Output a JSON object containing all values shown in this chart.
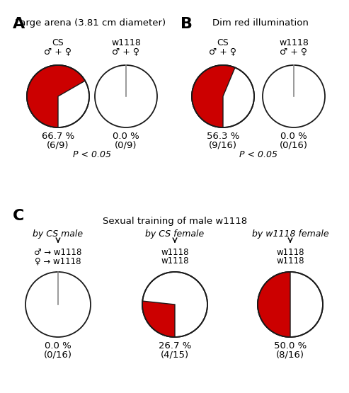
{
  "panel_A_title": "Large arena (3.81 cm diameter)",
  "panel_B_title": "Dim red illumination",
  "panel_C_title": "Sexual training of male w1118",
  "section_A_label": "A",
  "section_B_label": "B",
  "section_C_label": "C",
  "pies": {
    "A_CS": {
      "percent": 66.7,
      "label": "66.7 %",
      "sublabel": "(6/9)",
      "title": "CS",
      "subtitle": "♂ + ♀"
    },
    "A_w1118": {
      "percent": 0.0,
      "label": "0.0 %",
      "sublabel": "(0/9)",
      "title": "w1118",
      "subtitle": "♂ + ♀"
    },
    "B_CS": {
      "percent": 56.3,
      "label": "56.3 %",
      "sublabel": "(9/16)",
      "title": "CS",
      "subtitle": "♂ + ♀"
    },
    "B_w1118": {
      "percent": 0.0,
      "label": "0.0 %",
      "sublabel": "(0/16)",
      "title": "w1118",
      "subtitle": "♂ + ♀"
    },
    "C1": {
      "percent": 0.0,
      "label": "0.0 %",
      "sublabel": "(0/16)"
    },
    "C2": {
      "percent": 26.7,
      "label": "26.7 %",
      "sublabel": "(4/15)"
    },
    "C3": {
      "percent": 50.0,
      "label": "50.0 %",
      "sublabel": "(8/16)"
    }
  },
  "p_value_text": "P < 0.05",
  "C_subtitles": [
    "by CS male",
    "by CS female",
    "by w1118 female"
  ],
  "C_left_line1": "♂ → w1118",
  "C_left_line2": "♀ → w1118",
  "C_mid_line1": "w1118",
  "C_mid_line2": "w1118",
  "C_right_line1": "w1118",
  "C_right_line2": "w1118",
  "red_color": "#cc0000",
  "white_color": "#ffffff",
  "bg_color": "#ffffff",
  "text_color": "#000000",
  "pie_edge_color": "#1a1a1a",
  "zero_line_color": "#888888"
}
